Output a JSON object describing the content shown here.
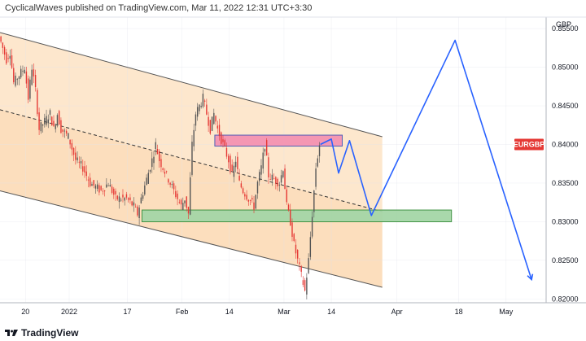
{
  "header": {
    "text": "CyclicalWaves published on TradingView.com, Mar 11, 2022 12:31 UTC+3:30"
  },
  "footer": {
    "brand": "TradingView"
  },
  "colors": {
    "up": "#555555",
    "down": "#e53935",
    "channel_fill": "#fde3c4",
    "channel_fill_inner": "#fbd9b3",
    "resistance": "#f48fb1",
    "resistance_border": "#3f51b5",
    "support": "#a5d6a7",
    "support_border": "#388e3c",
    "projection": "#2962ff",
    "symbol_badge": "#e53935"
  },
  "chart_data": {
    "type": "candlestick",
    "symbol": "EURGBP",
    "currency": "GBP",
    "y_range": [
      0.8195,
      0.8565
    ],
    "y_ticks": [
      0.82,
      0.825,
      0.83,
      0.835,
      0.84,
      0.845,
      0.85,
      0.855
    ],
    "y_tick_labels": [
      "0.82000",
      "0.82500",
      "0.83000",
      "0.83500",
      "0.84000",
      "0.84500",
      "0.85000",
      "0.85500"
    ],
    "x_range": [
      "2021-12-13",
      "2022-05-12"
    ],
    "x_ticks": [
      {
        "date": "2021-12-20",
        "label": "20"
      },
      {
        "date": "2022-01-01",
        "label": "2022"
      },
      {
        "date": "2022-01-17",
        "label": "17"
      },
      {
        "date": "2022-02-01",
        "label": "Feb"
      },
      {
        "date": "2022-02-14",
        "label": "14"
      },
      {
        "date": "2022-03-01",
        "label": "Mar"
      },
      {
        "date": "2022-03-14",
        "label": "14"
      },
      {
        "date": "2022-04-01",
        "label": "Apr"
      },
      {
        "date": "2022-04-18",
        "label": "18"
      },
      {
        "date": "2022-05-01",
        "label": "May"
      }
    ],
    "last_price": 0.84,
    "price_path": [
      [
        "2021-12-13",
        0.854
      ],
      [
        "2021-12-15",
        0.851
      ],
      [
        "2021-12-16",
        0.852
      ],
      [
        "2021-12-17",
        0.848
      ],
      [
        "2021-12-20",
        0.85
      ],
      [
        "2021-12-21",
        0.846
      ],
      [
        "2021-12-22",
        0.85
      ],
      [
        "2021-12-23",
        0.847
      ],
      [
        "2021-12-24",
        0.842
      ],
      [
        "2021-12-27",
        0.844
      ],
      [
        "2021-12-28",
        0.842
      ],
      [
        "2021-12-29",
        0.844
      ],
      [
        "2021-12-30",
        0.842
      ],
      [
        "2022-01-01",
        0.841
      ],
      [
        "2022-01-03",
        0.838
      ],
      [
        "2022-01-05",
        0.837
      ],
      [
        "2022-01-07",
        0.835
      ],
      [
        "2022-01-10",
        0.834
      ],
      [
        "2022-01-12",
        0.835
      ],
      [
        "2022-01-14",
        0.833
      ],
      [
        "2022-01-17",
        0.833
      ],
      [
        "2022-01-19",
        0.832
      ],
      [
        "2022-01-20",
        0.831
      ],
      [
        "2022-01-21",
        0.833
      ],
      [
        "2022-01-24",
        0.838
      ],
      [
        "2022-01-25",
        0.84
      ],
      [
        "2022-01-26",
        0.838
      ],
      [
        "2022-01-28",
        0.836
      ],
      [
        "2022-01-31",
        0.833
      ],
      [
        "2022-02-01",
        0.832
      ],
      [
        "2022-02-02",
        0.833
      ],
      [
        "2022-02-03",
        0.831
      ],
      [
        "2022-02-04",
        0.84
      ],
      [
        "2022-02-05",
        0.844
      ],
      [
        "2022-02-07",
        0.846
      ],
      [
        "2022-02-08",
        0.844
      ],
      [
        "2022-02-09",
        0.842
      ],
      [
        "2022-02-10",
        0.844
      ],
      [
        "2022-02-11",
        0.842
      ],
      [
        "2022-02-14",
        0.838
      ],
      [
        "2022-02-15",
        0.836
      ],
      [
        "2022-02-16",
        0.838
      ],
      [
        "2022-02-17",
        0.835
      ],
      [
        "2022-02-18",
        0.834
      ],
      [
        "2022-02-21",
        0.832
      ],
      [
        "2022-02-22",
        0.835
      ],
      [
        "2022-02-23",
        0.837
      ],
      [
        "2022-02-24",
        0.84
      ],
      [
        "2022-02-25",
        0.836
      ],
      [
        "2022-02-28",
        0.835
      ],
      [
        "2022-03-01",
        0.837
      ],
      [
        "2022-03-02",
        0.832
      ],
      [
        "2022-03-03",
        0.83
      ],
      [
        "2022-03-04",
        0.827
      ],
      [
        "2022-03-05",
        0.825
      ],
      [
        "2022-03-07",
        0.821
      ],
      [
        "2022-03-08",
        0.825
      ],
      [
        "2022-03-09",
        0.831
      ],
      [
        "2022-03-10",
        0.837
      ],
      [
        "2022-03-11",
        0.84
      ]
    ],
    "drawings": {
      "channel_upper": [
        [
          "2021-12-13",
          0.8545
        ],
        [
          "2022-03-28",
          0.841
        ]
      ],
      "channel_lower": [
        [
          "2021-12-13",
          0.834
        ],
        [
          "2022-03-28",
          0.8215
        ]
      ],
      "channel_mid": [
        [
          "2021-12-13",
          0.8445
        ],
        [
          "2022-03-28",
          0.8313
        ]
      ],
      "resistance_zone": {
        "from": "2022-02-10",
        "to": "2022-03-17",
        "top": 0.841,
        "bottom": 0.84
      },
      "support_zone": {
        "from": "2022-01-21",
        "to": "2022-04-16",
        "top": 0.8313,
        "bottom": 0.8302
      },
      "projection": [
        [
          "2022-03-11",
          0.84
        ],
        [
          "2022-03-14",
          0.8407
        ],
        [
          "2022-03-16",
          0.8363
        ],
        [
          "2022-03-19",
          0.8405
        ],
        [
          "2022-03-25",
          0.8308
        ],
        [
          "2022-04-17",
          0.8535
        ],
        [
          "2022-05-08",
          0.8225
        ]
      ]
    }
  }
}
